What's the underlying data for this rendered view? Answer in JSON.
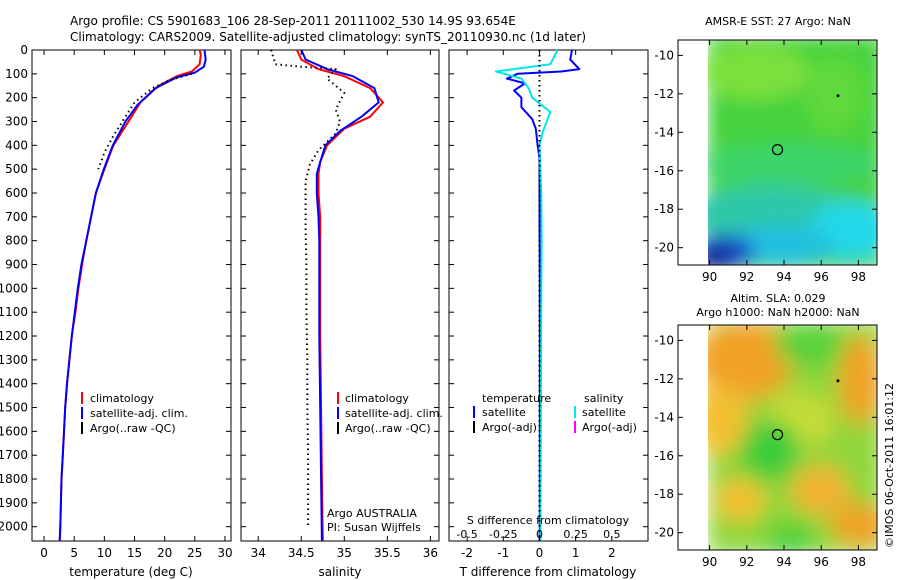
{
  "header": {
    "title_line1": "Argo profile: CS 5901683_106 28-Sep-2011 20111002_530 14.9S 93.654E",
    "title_line2": "Climatology: CARS2009. Satellite-adjusted climatology: synTS_20110930.nc (1d later)"
  },
  "colors": {
    "climatology": "#ff0000",
    "satellite": "#0000ff",
    "argo": "#000000",
    "salinity_diff": "#00e5ee",
    "argo_salinity_diff": "#ff00ff"
  },
  "chart_data": [
    {
      "type": "line",
      "name": "temperature_profile",
      "xlabel": "temperature (deg C)",
      "ylabel": "",
      "xlim": [
        -2,
        31
      ],
      "ylim": [
        2060,
        0
      ],
      "xticks": [
        0,
        5,
        10,
        15,
        20,
        25,
        30
      ],
      "yticks": [
        0,
        100,
        200,
        300,
        400,
        500,
        600,
        700,
        800,
        900,
        1000,
        1100,
        1200,
        1300,
        1400,
        1500,
        1600,
        1700,
        1800,
        1900,
        2000
      ],
      "legend": [
        "climatology",
        "satellite-adj. clim.",
        "Argo(..raw -QC)"
      ],
      "series": [
        {
          "name": "climatology",
          "color": "#ff0000",
          "style": "solid",
          "points": [
            [
              25.8,
              0
            ],
            [
              26.0,
              20
            ],
            [
              25.8,
              60
            ],
            [
              24.5,
              90
            ],
            [
              22,
              110
            ],
            [
              19,
              150
            ],
            [
              16,
              220
            ],
            [
              14,
              300
            ],
            [
              11.5,
              400
            ],
            [
              10,
              500
            ],
            [
              8.6,
              600
            ],
            [
              7.8,
              700
            ],
            [
              7,
              800
            ],
            [
              6.3,
              900
            ],
            [
              5.7,
              1000
            ],
            [
              5.2,
              1100
            ],
            [
              4.6,
              1200
            ],
            [
              4.2,
              1300
            ],
            [
              3.8,
              1400
            ],
            [
              3.5,
              1500
            ],
            [
              3.3,
              1600
            ],
            [
              3.1,
              1700
            ],
            [
              2.9,
              1800
            ],
            [
              2.8,
              1900
            ],
            [
              2.7,
              2000
            ],
            [
              2.6,
              2060
            ]
          ]
        },
        {
          "name": "satellite-adj. clim.",
          "color": "#0000ff",
          "style": "solid",
          "points": [
            [
              26.6,
              0
            ],
            [
              26.8,
              40
            ],
            [
              26.5,
              70
            ],
            [
              25,
              95
            ],
            [
              22,
              115
            ],
            [
              18.5,
              160
            ],
            [
              15.5,
              230
            ],
            [
              13.5,
              300
            ],
            [
              11.4,
              400
            ],
            [
              9.9,
              500
            ],
            [
              8.6,
              600
            ],
            [
              7.8,
              700
            ],
            [
              7,
              800
            ],
            [
              6.2,
              900
            ],
            [
              5.6,
              1000
            ],
            [
              5.1,
              1100
            ],
            [
              4.6,
              1200
            ],
            [
              4.2,
              1300
            ],
            [
              3.8,
              1400
            ],
            [
              3.5,
              1500
            ],
            [
              3.3,
              1600
            ],
            [
              3.1,
              1700
            ],
            [
              2.9,
              1800
            ],
            [
              2.8,
              1900
            ],
            [
              2.7,
              2000
            ],
            [
              2.6,
              2060
            ]
          ]
        },
        {
          "name": "Argo(..raw -QC)",
          "color": "#000000",
          "style": "dotted",
          "points": [
            [
              24.5,
              100
            ],
            [
              21,
              125
            ],
            [
              18,
              160
            ],
            [
              15,
              220
            ],
            [
              13.5,
              280
            ],
            [
              11.5,
              360
            ],
            [
              10,
              430
            ],
            [
              9,
              500
            ]
          ]
        }
      ]
    },
    {
      "type": "line",
      "name": "salinity_profile",
      "xlabel": "salinity",
      "xlim": [
        33.8,
        36.1
      ],
      "ylim": [
        2060,
        0
      ],
      "xticks": [
        34,
        34.5,
        35,
        35.5,
        36
      ],
      "legend": [
        "climatology",
        "satellite-adj. clim.",
        "Argo(..raw -QC)"
      ],
      "annotation": [
        "Argo AUSTRALIA",
        "PI: Susan Wijffels"
      ],
      "series": [
        {
          "name": "climatology",
          "color": "#ff0000",
          "style": "solid",
          "points": [
            [
              34.45,
              0
            ],
            [
              34.5,
              40
            ],
            [
              34.7,
              80
            ],
            [
              35.0,
              110
            ],
            [
              35.3,
              160
            ],
            [
              35.45,
              220
            ],
            [
              35.3,
              280
            ],
            [
              35.0,
              330
            ],
            [
              34.8,
              400
            ],
            [
              34.72,
              470
            ],
            [
              34.7,
              520
            ],
            [
              34.7,
              600
            ],
            [
              34.72,
              700
            ],
            [
              34.72,
              800
            ],
            [
              34.72,
              900
            ],
            [
              34.72,
              1000
            ],
            [
              34.72,
              1200
            ],
            [
              34.73,
              1500
            ],
            [
              34.74,
              1800
            ],
            [
              34.75,
              2060
            ]
          ]
        },
        {
          "name": "satellite-adj. clim.",
          "color": "#0000ff",
          "style": "solid",
          "points": [
            [
              34.5,
              0
            ],
            [
              34.55,
              40
            ],
            [
              34.8,
              80
            ],
            [
              35.1,
              110
            ],
            [
              35.35,
              160
            ],
            [
              35.4,
              220
            ],
            [
              35.2,
              280
            ],
            [
              34.95,
              340
            ],
            [
              34.78,
              400
            ],
            [
              34.72,
              470
            ],
            [
              34.68,
              520
            ],
            [
              34.68,
              600
            ],
            [
              34.7,
              700
            ],
            [
              34.71,
              800
            ],
            [
              34.71,
              900
            ],
            [
              34.71,
              1000
            ],
            [
              34.71,
              1200
            ],
            [
              34.72,
              1500
            ],
            [
              34.73,
              1800
            ],
            [
              34.74,
              2060
            ]
          ]
        },
        {
          "name": "Argo(..raw -QC)",
          "color": "#000000",
          "style": "dotted",
          "points": [
            [
              34.15,
              0
            ],
            [
              34.2,
              60
            ],
            [
              34.5,
              70
            ],
            [
              34.9,
              80
            ],
            [
              34.8,
              120
            ],
            [
              35.0,
              180
            ],
            [
              34.9,
              250
            ],
            [
              34.95,
              300
            ],
            [
              34.9,
              350
            ],
            [
              34.7,
              420
            ],
            [
              34.6,
              480
            ],
            [
              34.55,
              550
            ],
            [
              34.55,
              650
            ],
            [
              34.55,
              750
            ],
            [
              34.56,
              900
            ],
            [
              34.56,
              1100
            ],
            [
              34.57,
              1300
            ],
            [
              34.57,
              1500
            ],
            [
              34.58,
              1700
            ],
            [
              34.58,
              1900
            ],
            [
              34.58,
              2000
            ]
          ]
        }
      ]
    },
    {
      "type": "line",
      "name": "difference_from_climatology",
      "xlabel": "T difference from climatology",
      "xlabel_top": "S difference from climatology",
      "xlim": [
        -2.5,
        3
      ],
      "ylim": [
        2060,
        0
      ],
      "xticks": [
        -2,
        -1,
        0,
        1,
        2
      ],
      "xticks_top": [
        -0.5,
        -0.25,
        0,
        0.25,
        0.5
      ],
      "legend_left_title": "temperature",
      "legend_right_title": "salinity",
      "legend": [
        "satellite",
        "Argo(-adj)",
        "satellite",
        "Argo(-adj)"
      ],
      "series": [
        {
          "name": "satellite",
          "group": "temperature",
          "color": "#0000ff",
          "style": "solid",
          "points": [
            [
              0.9,
              0
            ],
            [
              0.85,
              40
            ],
            [
              1.1,
              80
            ],
            [
              0.6,
              90
            ],
            [
              -0.6,
              100
            ],
            [
              -0.9,
              120
            ],
            [
              -0.4,
              140
            ],
            [
              -0.7,
              170
            ],
            [
              -0.5,
              200
            ],
            [
              -0.5,
              240
            ],
            [
              -0.2,
              290
            ],
            [
              -0.1,
              330
            ],
            [
              -0.05,
              400
            ],
            [
              0,
              450
            ],
            [
              0,
              500
            ],
            [
              0,
              700
            ],
            [
              0.01,
              1000
            ],
            [
              0.01,
              1500
            ],
            [
              0.01,
              2000
            ],
            [
              0,
              2060
            ]
          ]
        },
        {
          "name": "satellite",
          "group": "salinity",
          "color": "#00e5ee",
          "style": "solid",
          "points": [
            [
              0.5,
              0
            ],
            [
              0.3,
              60
            ],
            [
              -1.2,
              90
            ],
            [
              -0.5,
              120
            ],
            [
              -0.3,
              160
            ],
            [
              -0.2,
              200
            ],
            [
              0.3,
              260
            ],
            [
              0.2,
              300
            ],
            [
              0.1,
              340
            ],
            [
              0,
              400
            ],
            [
              0.05,
              600
            ],
            [
              0.06,
              800
            ],
            [
              0.05,
              1000
            ],
            [
              0.04,
              1500
            ],
            [
              0.03,
              2000
            ],
            [
              0.03,
              2060
            ]
          ]
        },
        {
          "name": "zero_reference",
          "color": "#000000",
          "style": "dotted",
          "points": [
            [
              0,
              0
            ],
            [
              0,
              2060
            ]
          ]
        }
      ]
    }
  ],
  "maps": [
    {
      "name": "sst_map",
      "title": "AMSR-E SST: 27 Argo: NaN",
      "xticks": [
        90,
        92,
        94,
        96,
        98
      ],
      "yticks": [
        -10,
        -12,
        -14,
        -16,
        -18,
        -20
      ],
      "xlim": [
        88.3,
        99
      ],
      "ylim": [
        -20.9,
        -9.2
      ],
      "argo_marker": [
        93.65,
        -14.9
      ],
      "dot": [
        96.9,
        -12.1
      ]
    },
    {
      "name": "sla_map",
      "title_line1": "Altim. SLA: 0.029",
      "title_line2": "Argo h1000: NaN h2000: NaN",
      "xticks": [
        90,
        92,
        94,
        96,
        98
      ],
      "yticks": [
        -10,
        -12,
        -14,
        -16,
        -18,
        -20
      ],
      "xlim": [
        88.3,
        99
      ],
      "ylim": [
        -20.9,
        -9.2
      ],
      "argo_marker": [
        93.65,
        -14.9
      ],
      "dot": [
        96.9,
        -12.1
      ]
    }
  ],
  "footer": {
    "stamp": "©IMOS 06-Oct-2011 16:01:12"
  }
}
